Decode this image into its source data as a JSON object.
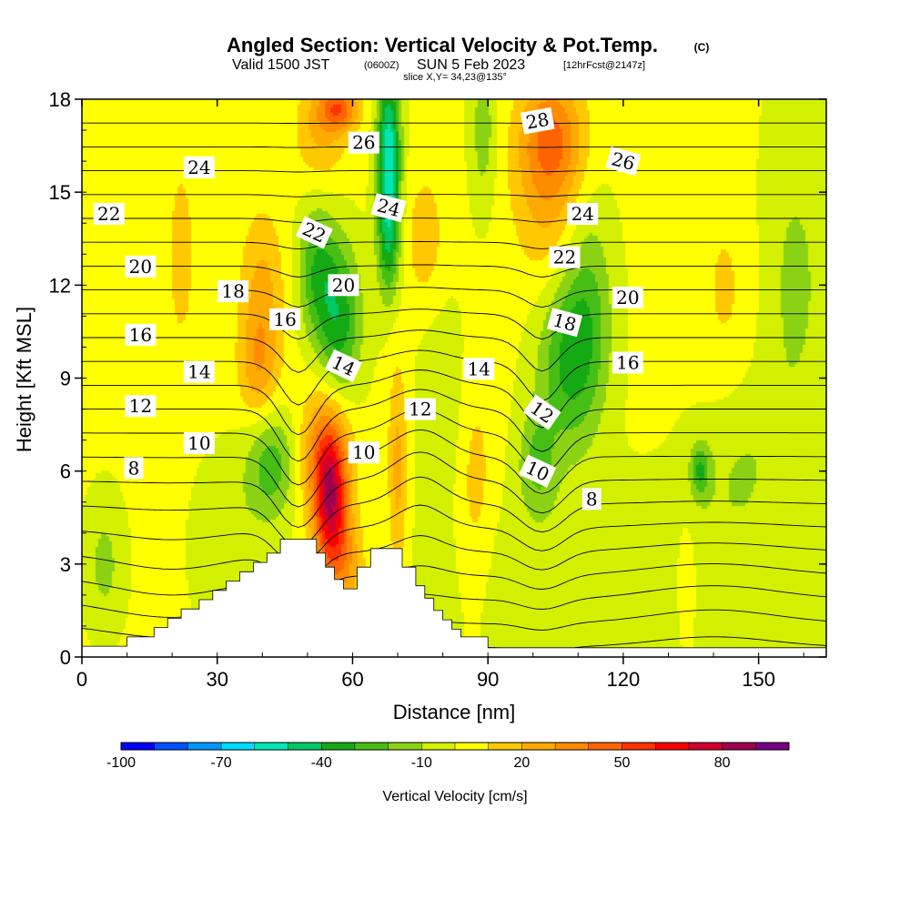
{
  "title": {
    "main": "Angled Section: Vertical Velocity & Pot.Temp.",
    "copyright": "(C)",
    "valid_prefix": "Valid 1500 JST",
    "valid_utc": "(0600Z)",
    "valid_date": "SUN 5 Feb 2023",
    "forecast": "[12hrFcst@2147z]",
    "slice": "slice X,Y= 34,23@135°"
  },
  "colors": {
    "background": "#ffffff",
    "dominant_fill": "#ffff00",
    "frame": "#000000",
    "contour_line": "#000000",
    "terrain": "#ffffff"
  },
  "chart_data": {
    "type": "heatmap",
    "xlabel": "Distance [nm]",
    "ylabel": "Height [Kft MSL]",
    "xlim": [
      0,
      165
    ],
    "ylim": [
      0,
      18
    ],
    "x_ticks": [
      0,
      30,
      60,
      90,
      120,
      150
    ],
    "y_ticks": [
      0,
      3,
      6,
      9,
      12,
      15,
      18
    ],
    "grid": false,
    "colorbar": {
      "label": "Vertical Velocity [cm/s]",
      "placement": "bottom",
      "min": -100,
      "max": 100,
      "step": 10,
      "tick_values": [
        -100,
        -70,
        -40,
        -10,
        20,
        50,
        80
      ],
      "colors": [
        "#0000ff",
        "#0050ff",
        "#0096ff",
        "#00dcff",
        "#00e6b4",
        "#00c864",
        "#14aa14",
        "#46be14",
        "#8cd214",
        "#d2f000",
        "#ffff00",
        "#ffc800",
        "#ffaa00",
        "#ff8c00",
        "#ff6400",
        "#ff3200",
        "#ff0000",
        "#d2002d",
        "#a00050",
        "#780082"
      ]
    },
    "velocity_fields": [
      {
        "sign": "up",
        "x": 55,
        "y": 5.0,
        "magnitude": 60,
        "sx": 2.5,
        "sy": 1.5
      },
      {
        "sign": "up",
        "x": 54,
        "y": 6.5,
        "magnitude": 35,
        "sx": 4,
        "sy": 1.6
      },
      {
        "sign": "up",
        "x": 58,
        "y": 3.2,
        "magnitude": 25,
        "sx": 3,
        "sy": 1.0
      },
      {
        "sign": "up",
        "x": 70,
        "y": 6.0,
        "magnitude": 22,
        "sx": 1.5,
        "sy": 2.5
      },
      {
        "sign": "up",
        "x": 57,
        "y": 17.7,
        "magnitude": 40,
        "sx": 3,
        "sy": 0.5
      },
      {
        "sign": "up",
        "x": 53,
        "y": 17.0,
        "magnitude": 20,
        "sx": 4,
        "sy": 1.2
      },
      {
        "sign": "up",
        "x": 104,
        "y": 16.8,
        "magnitude": 35,
        "sx": 5,
        "sy": 1.4
      },
      {
        "sign": "up",
        "x": 104,
        "y": 14.5,
        "magnitude": 18,
        "sx": 6,
        "sy": 2.0
      },
      {
        "sign": "up",
        "x": 40,
        "y": 11.5,
        "magnitude": 22,
        "sx": 3.5,
        "sy": 2.0
      },
      {
        "sign": "up",
        "x": 39,
        "y": 9.2,
        "magnitude": 18,
        "sx": 3,
        "sy": 1.2
      },
      {
        "sign": "up",
        "x": 22,
        "y": 13.0,
        "magnitude": 15,
        "sx": 2,
        "sy": 2.0
      },
      {
        "sign": "up",
        "x": 76,
        "y": 13.5,
        "magnitude": 15,
        "sx": 3,
        "sy": 1.5
      },
      {
        "sign": "up",
        "x": 87,
        "y": 5.5,
        "magnitude": 14,
        "sx": 3,
        "sy": 2.5
      },
      {
        "sign": "up",
        "x": 60,
        "y": 1.0,
        "magnitude": 15,
        "sx": 6,
        "sy": 1.0
      },
      {
        "sign": "up",
        "x": 134,
        "y": 2.5,
        "magnitude": 12,
        "sx": 2,
        "sy": 1.5
      },
      {
        "sign": "up",
        "x": 143,
        "y": 11.5,
        "magnitude": 10,
        "sx": 5,
        "sy": 3.0
      },
      {
        "sign": "down",
        "x": 68,
        "y": 16.5,
        "magnitude": 55,
        "sx": 1.8,
        "sy": 1.8
      },
      {
        "sign": "down",
        "x": 68,
        "y": 13.5,
        "magnitude": 35,
        "sx": 1.8,
        "sy": 1.5
      },
      {
        "sign": "down",
        "x": 57,
        "y": 10.8,
        "magnitude": 38,
        "sx": 3.5,
        "sy": 1.8
      },
      {
        "sign": "down",
        "x": 52,
        "y": 12.5,
        "magnitude": 28,
        "sx": 3,
        "sy": 1.5
      },
      {
        "sign": "down",
        "x": 42,
        "y": 6.2,
        "magnitude": 28,
        "sx": 4,
        "sy": 1.3
      },
      {
        "sign": "down",
        "x": 108,
        "y": 9.5,
        "magnitude": 32,
        "sx": 5,
        "sy": 2.0
      },
      {
        "sign": "down",
        "x": 101,
        "y": 6.3,
        "magnitude": 22,
        "sx": 3,
        "sy": 1.2
      },
      {
        "sign": "down",
        "x": 137,
        "y": 6.0,
        "magnitude": 28,
        "sx": 1.5,
        "sy": 0.6
      },
      {
        "sign": "down",
        "x": 89,
        "y": 17.0,
        "magnitude": 18,
        "sx": 2,
        "sy": 1.8
      },
      {
        "sign": "down",
        "x": 112,
        "y": 12.0,
        "magnitude": 20,
        "sx": 4,
        "sy": 2.5
      },
      {
        "sign": "down",
        "x": 158,
        "y": 12.0,
        "magnitude": 14,
        "sx": 6,
        "sy": 4.0
      },
      {
        "sign": "down",
        "x": 145,
        "y": 6.5,
        "magnitude": 12,
        "sx": 7,
        "sy": 2.0
      },
      {
        "sign": "down",
        "x": 5,
        "y": 3.0,
        "magnitude": 15,
        "sx": 3,
        "sy": 1.5
      },
      {
        "sign": "down",
        "x": 120,
        "y": 2.5,
        "magnitude": 10,
        "sx": 30,
        "sy": 2.2
      },
      {
        "sign": "down",
        "x": 80,
        "y": 8.0,
        "magnitude": 10,
        "sx": 4,
        "sy": 2.5
      },
      {
        "sign": "down",
        "x": 32,
        "y": 3.5,
        "magnitude": 10,
        "sx": 5,
        "sy": 2.0
      }
    ],
    "terrain": [
      [
        0,
        0.35
      ],
      [
        10,
        0.35
      ],
      [
        10,
        0.65
      ],
      [
        16,
        0.65
      ],
      [
        16,
        0.95
      ],
      [
        19,
        0.95
      ],
      [
        19,
        1.25
      ],
      [
        22,
        1.25
      ],
      [
        22,
        1.55
      ],
      [
        26,
        1.55
      ],
      [
        26,
        1.85
      ],
      [
        29,
        1.85
      ],
      [
        29,
        2.15
      ],
      [
        32,
        2.15
      ],
      [
        32,
        2.45
      ],
      [
        35,
        2.45
      ],
      [
        35,
        2.75
      ],
      [
        38,
        2.75
      ],
      [
        38,
        3.05
      ],
      [
        41,
        3.05
      ],
      [
        41,
        3.35
      ],
      [
        44,
        3.35
      ],
      [
        44,
        3.8
      ],
      [
        52,
        3.8
      ],
      [
        52,
        3.35
      ],
      [
        54,
        3.35
      ],
      [
        54,
        2.9
      ],
      [
        56,
        2.9
      ],
      [
        56,
        2.5
      ],
      [
        58,
        2.5
      ],
      [
        58,
        2.2
      ],
      [
        61,
        2.2
      ],
      [
        61,
        2.9
      ],
      [
        64,
        2.9
      ],
      [
        64,
        3.5
      ],
      [
        71,
        3.5
      ],
      [
        71,
        2.9
      ],
      [
        74,
        2.9
      ],
      [
        74,
        2.3
      ],
      [
        76,
        2.3
      ],
      [
        76,
        1.9
      ],
      [
        78,
        1.9
      ],
      [
        78,
        1.5
      ],
      [
        80,
        1.5
      ],
      [
        80,
        1.2
      ],
      [
        82,
        1.2
      ],
      [
        82,
        0.9
      ],
      [
        84,
        0.9
      ],
      [
        84,
        0.65
      ],
      [
        90,
        0.65
      ],
      [
        90,
        0.3
      ],
      [
        165,
        0.3
      ]
    ],
    "isotherm_levels": [
      2,
      3,
      4,
      5,
      6,
      7,
      8,
      9,
      10,
      11,
      12,
      13,
      14,
      15,
      16,
      17,
      18,
      19,
      20,
      21,
      22,
      23,
      24,
      25,
      26,
      27,
      28,
      29
    ],
    "theta_labels": [
      {
        "text": "8",
        "x": 11.5,
        "y": 6.1,
        "angle": 0
      },
      {
        "text": "10",
        "x": 26,
        "y": 6.9,
        "angle": 0
      },
      {
        "text": "12",
        "x": 13,
        "y": 8.1,
        "angle": 0
      },
      {
        "text": "14",
        "x": 26,
        "y": 9.2,
        "angle": 0
      },
      {
        "text": "16",
        "x": 13,
        "y": 10.4,
        "angle": 0
      },
      {
        "text": "18",
        "x": 33.5,
        "y": 11.8,
        "angle": 0
      },
      {
        "text": "20",
        "x": 13,
        "y": 12.6,
        "angle": 0
      },
      {
        "text": "22",
        "x": 6,
        "y": 14.3,
        "angle": 0
      },
      {
        "text": "24",
        "x": 26,
        "y": 15.8,
        "angle": 0
      },
      {
        "text": "16",
        "x": 45,
        "y": 10.9,
        "angle": 0
      },
      {
        "text": "22",
        "x": 51.5,
        "y": 13.7,
        "angle": 25
      },
      {
        "text": "20",
        "x": 58,
        "y": 12.0,
        "angle": 0
      },
      {
        "text": "14",
        "x": 58,
        "y": 9.4,
        "angle": 25
      },
      {
        "text": "10",
        "x": 62.5,
        "y": 6.6,
        "angle": 0
      },
      {
        "text": "12",
        "x": 75,
        "y": 8.0,
        "angle": 0
      },
      {
        "text": "24",
        "x": 68,
        "y": 14.5,
        "angle": 15
      },
      {
        "text": "26",
        "x": 62.5,
        "y": 16.6,
        "angle": 0
      },
      {
        "text": "14",
        "x": 88,
        "y": 9.3,
        "angle": 0
      },
      {
        "text": "28",
        "x": 101,
        "y": 17.3,
        "angle": -10
      },
      {
        "text": "26",
        "x": 120,
        "y": 16.0,
        "angle": 15
      },
      {
        "text": "24",
        "x": 111,
        "y": 14.3,
        "angle": 0
      },
      {
        "text": "22",
        "x": 107,
        "y": 12.9,
        "angle": 0
      },
      {
        "text": "20",
        "x": 121,
        "y": 11.6,
        "angle": 0
      },
      {
        "text": "18",
        "x": 107,
        "y": 10.8,
        "angle": 15
      },
      {
        "text": "16",
        "x": 121,
        "y": 9.5,
        "angle": 0
      },
      {
        "text": "12",
        "x": 102,
        "y": 7.9,
        "angle": 35
      },
      {
        "text": "10",
        "x": 101,
        "y": 6.0,
        "angle": 25
      },
      {
        "text": "8",
        "x": 113,
        "y": 5.1,
        "angle": 0
      }
    ]
  }
}
